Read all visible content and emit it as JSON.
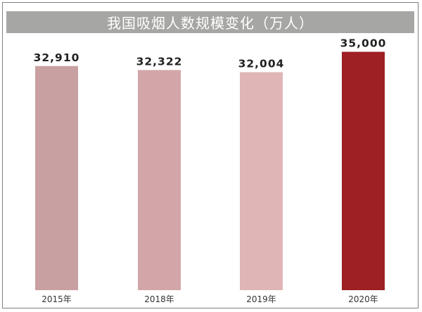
{
  "chart_data": {
    "type": "bar",
    "title": "我国吸烟人数规模变化（万人）",
    "categories": [
      "2015年",
      "2018年",
      "2019年",
      "2020年"
    ],
    "values": [
      32910,
      32322,
      32004,
      35000
    ],
    "value_labels": [
      "32,910",
      "32,322",
      "32,004",
      "35,000"
    ],
    "colors": [
      "#c9a0a1",
      "#d2a6a8",
      "#e0b5b6",
      "#9e1f24"
    ],
    "xlabel": "",
    "ylabel": "",
    "grid": false,
    "legend": "none"
  }
}
